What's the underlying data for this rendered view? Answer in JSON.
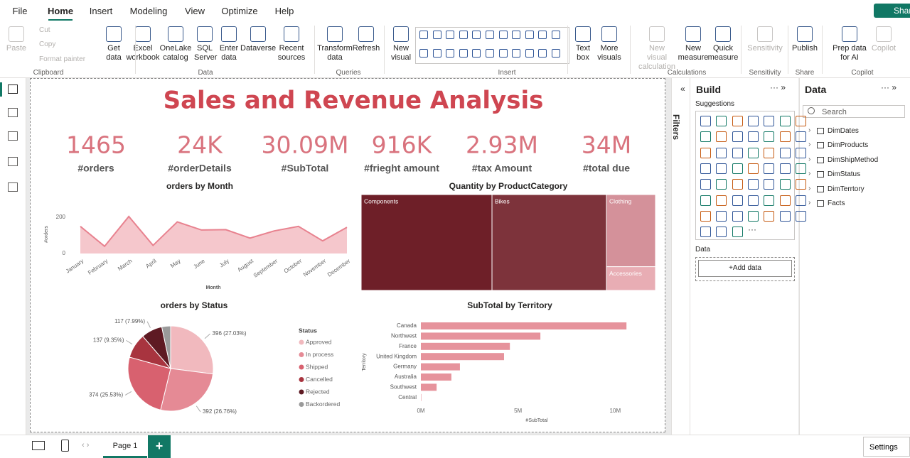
{
  "menu": {
    "tabs": [
      "File",
      "Home",
      "Insert",
      "Modeling",
      "View",
      "Optimize",
      "Help"
    ],
    "share": "Share"
  },
  "ribbon": {
    "groups": [
      {
        "label": "Clipboard",
        "items": [
          "Paste",
          "Cut",
          "Copy",
          "Format painter"
        ]
      },
      {
        "label": "Data",
        "items": [
          "Get data",
          "Excel workbook",
          "OneLake catalog",
          "SQL Server",
          "Enter data",
          "Dataverse",
          "Recent sources"
        ]
      },
      {
        "label": "Queries",
        "items": [
          "Transform data",
          "Refresh"
        ]
      },
      {
        "label": "Insert",
        "items": [
          "New visual",
          "Text box",
          "More visuals"
        ]
      },
      {
        "label": "Calculations",
        "items": [
          "New visual calculation",
          "New measure",
          "Quick measure"
        ]
      },
      {
        "label": "Sensitivity",
        "items": [
          "Sensitivity"
        ]
      },
      {
        "label": "Share",
        "items": [
          "Publish"
        ]
      },
      {
        "label": "Copilot",
        "items": [
          "Prep data for AI",
          "Copilot"
        ]
      }
    ]
  },
  "report": {
    "title": "Sales and Revenue Analysis",
    "kpis": [
      {
        "value": "1465",
        "label": "#orders"
      },
      {
        "value": "24K",
        "label": "#orderDetails"
      },
      {
        "value": "30.09M",
        "label": "#SubTotal"
      },
      {
        "value": "916K",
        "label": "#frieght amount"
      },
      {
        "value": "2.93M",
        "label": "#tax Amount"
      },
      {
        "value": "34M",
        "label": "#total due"
      }
    ],
    "visuals": [
      {
        "type": "area",
        "title": "orders by Month",
        "x_label": "Month",
        "y_label": "#orders",
        "color": "#e8828f",
        "categories": [
          "January",
          "February",
          "March",
          "April",
          "May",
          "June",
          "July",
          "August",
          "September",
          "October",
          "November",
          "December"
        ],
        "values": [
          150,
          40,
          205,
          45,
          175,
          130,
          132,
          85,
          125,
          150,
          70,
          145
        ],
        "ylim": [
          0,
          220
        ],
        "yticks": [
          0,
          200
        ]
      },
      {
        "type": "treemap",
        "title": "Quantity by ProductCategory",
        "categories": [
          "Components",
          "Bikes",
          "Clothing",
          "Accessories"
        ],
        "values": [
          24800,
          21700,
          7000,
          2300
        ],
        "colors": [
          "#6e1f28",
          "#7d333b",
          "#d4919a",
          "#e8adb4"
        ]
      },
      {
        "type": "pie",
        "title": "orders by Status",
        "legend_title": "Status",
        "categories": [
          "Approved",
          "In process",
          "Shipped",
          "Cancelled",
          "Rejected",
          "Backordered"
        ],
        "values": [
          396,
          392,
          374,
          137,
          117,
          49
        ],
        "value_labels": [
          "396 (27.03%)",
          "392 (26.76%)",
          "374 (25.53%)",
          "137 (9.35%)",
          "117 (7.99%)",
          null
        ],
        "colors": [
          "#f1b9be",
          "#e58a95",
          "#d8616f",
          "#a8343f",
          "#5e1a23",
          "#9a9a9a"
        ]
      },
      {
        "type": "hbar",
        "title": "SubTotal by Territory",
        "x_label": "#SubTotal",
        "y_label": "Territory",
        "color": "#e6939c",
        "categories": [
          "Canada",
          "Northwest",
          "France",
          "United Kingdom",
          "Germany",
          "Australia",
          "Southwest",
          "Central"
        ],
        "values": [
          10.58,
          6.15,
          4.58,
          4.28,
          2.01,
          1.57,
          0.81,
          0.02
        ],
        "xlim": [
          0,
          12
        ],
        "xticks": [
          {
            "value": 0,
            "label": "0M"
          },
          {
            "value": 5,
            "label": "5M"
          },
          {
            "value": 10,
            "label": "10M"
          }
        ]
      }
    ]
  },
  "filters": "Filters",
  "build": {
    "title": "Build",
    "suggestions": "Suggestions",
    "data_label": "Data",
    "add_data": "+Add data"
  },
  "data_pane": {
    "title": "Data",
    "search": "Search",
    "tables": [
      "DimDates",
      "DimProducts",
      "DimShipMethod",
      "DimStatus",
      "DimTerrtory",
      "Facts"
    ]
  },
  "pages": {
    "tabs": [
      "Page 1"
    ],
    "add": "+"
  },
  "settings": "Settings"
}
